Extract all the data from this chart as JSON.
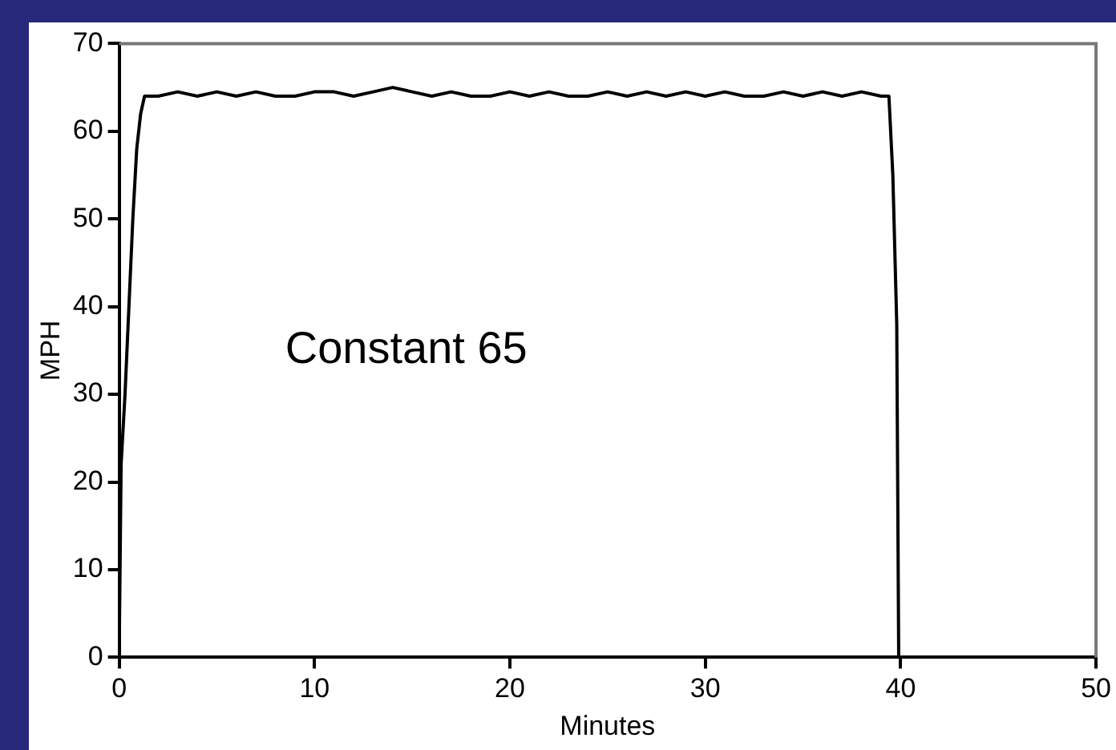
{
  "chart_data": {
    "type": "line",
    "xlabel": "Minutes",
    "ylabel": "MPH",
    "annotations": [
      "Constant 65"
    ],
    "x": [
      0,
      0.1,
      0.3,
      0.5,
      0.7,
      0.9,
      1.1,
      1.3,
      2,
      3,
      4,
      5,
      6,
      7,
      8,
      9,
      10,
      11,
      12,
      13,
      14,
      15,
      16,
      17,
      18,
      19,
      20,
      21,
      22,
      23,
      24,
      25,
      26,
      27,
      28,
      29,
      30,
      31,
      32,
      33,
      34,
      35,
      36,
      37,
      38,
      39,
      39.4,
      39.6,
      39.8,
      39.9
    ],
    "series": [
      {
        "color": "#000000",
        "values": [
          0,
          22,
          30,
          40,
          50,
          58,
          62,
          64,
          64,
          64.5,
          64,
          64.5,
          64,
          64.5,
          64,
          64,
          64.5,
          64.5,
          64,
          64.5,
          65,
          64.5,
          64,
          64.5,
          64,
          64,
          64.5,
          64,
          64.5,
          64,
          64,
          64.5,
          64,
          64.5,
          64,
          64.5,
          64,
          64.5,
          64,
          64,
          64.5,
          64,
          64.5,
          64,
          64.5,
          64,
          64,
          55,
          38,
          0
        ]
      }
    ],
    "xlim": [
      0,
      50
    ],
    "xticks": [
      0,
      10,
      20,
      30,
      40,
      50
    ],
    "ylim": [
      0,
      70
    ],
    "yticks": [
      0,
      10,
      20,
      30,
      40,
      50,
      60,
      70
    ],
    "grid": false,
    "legend": false,
    "marker": "none",
    "line_style": "solid"
  }
}
